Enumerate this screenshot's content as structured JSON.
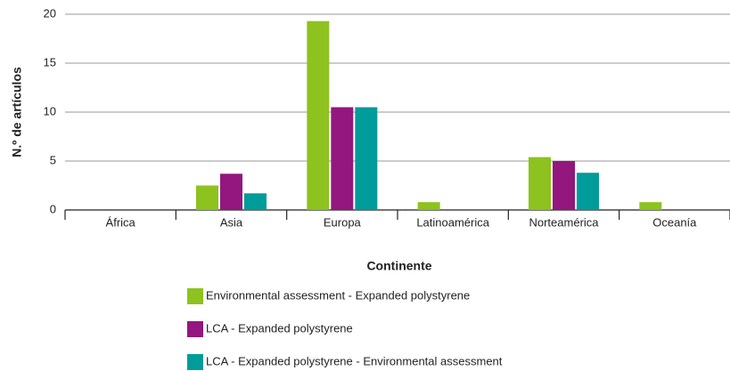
{
  "chart_data": {
    "type": "bar",
    "y_label": "N.º de artículos",
    "x_label": "Continente",
    "categories": [
      "África",
      "Asia",
      "Europa",
      "Latinoamérica",
      "Norteamérica",
      "Oceanía"
    ],
    "series": [
      {
        "name": "Environmental assessment - Expanded polystyrene",
        "color": "#8dc21f",
        "values": [
          0,
          2.5,
          19.3,
          0.8,
          5.4,
          0.8
        ]
      },
      {
        "name": "LCA - Expanded polystyrene",
        "color": "#93177e",
        "values": [
          0,
          3.7,
          10.5,
          0,
          5,
          0
        ]
      },
      {
        "name": "LCA - Expanded polystyrene - Environmental assessment",
        "color": "#009c9a",
        "values": [
          0,
          1.7,
          10.5,
          0,
          3.8,
          0
        ]
      }
    ],
    "ylim": [
      0,
      20
    ],
    "yticks": [
      0,
      5,
      10,
      15,
      20
    ],
    "grid": true
  }
}
